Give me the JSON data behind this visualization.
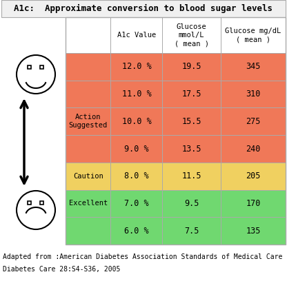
{
  "title": "A1c:  Approximate conversion to blood sugar levels",
  "col_headers": [
    "",
    "A1c Value",
    "Glucose\nmmol/L\n( mean )",
    "Glucose mg/dL\n( mean )"
  ],
  "rows": [
    {
      "label": "",
      "a1c": "12.0 %",
      "mmol": "19.5",
      "mgdl": "345",
      "row_color": "#f07858"
    },
    {
      "label": "",
      "a1c": "11.0 %",
      "mmol": "17.5",
      "mgdl": "310",
      "row_color": "#f07858"
    },
    {
      "label": "Action\nSuggested",
      "a1c": "10.0 %",
      "mmol": "15.5",
      "mgdl": "275",
      "row_color": "#f07858"
    },
    {
      "label": "",
      "a1c": "9.0 %",
      "mmol": "13.5",
      "mgdl": "240",
      "row_color": "#f07858"
    },
    {
      "label": "Caution",
      "a1c": "8.0 %",
      "mmol": "11.5",
      "mgdl": "205",
      "row_color": "#f0d060"
    },
    {
      "label": "Excellent",
      "a1c": "7.0 %",
      "mmol": "9.5",
      "mgdl": "170",
      "row_color": "#70d870"
    },
    {
      "label": "",
      "a1c": "6.0 %",
      "mmol": "7.5",
      "mgdl": "135",
      "row_color": "#70d870"
    }
  ],
  "footer1": "Adapted from :American Diabetes Association Standards of Medical Care in Diabetes",
  "footer2": "Diabetes Care 28:S4-S36, 2005",
  "bg_color": "#ffffff",
  "border_color": "#aaaaaa",
  "title_fontsize": 9,
  "cell_fontsize": 8.5,
  "label_fontsize": 7.5,
  "footer_fontsize": 7.0
}
